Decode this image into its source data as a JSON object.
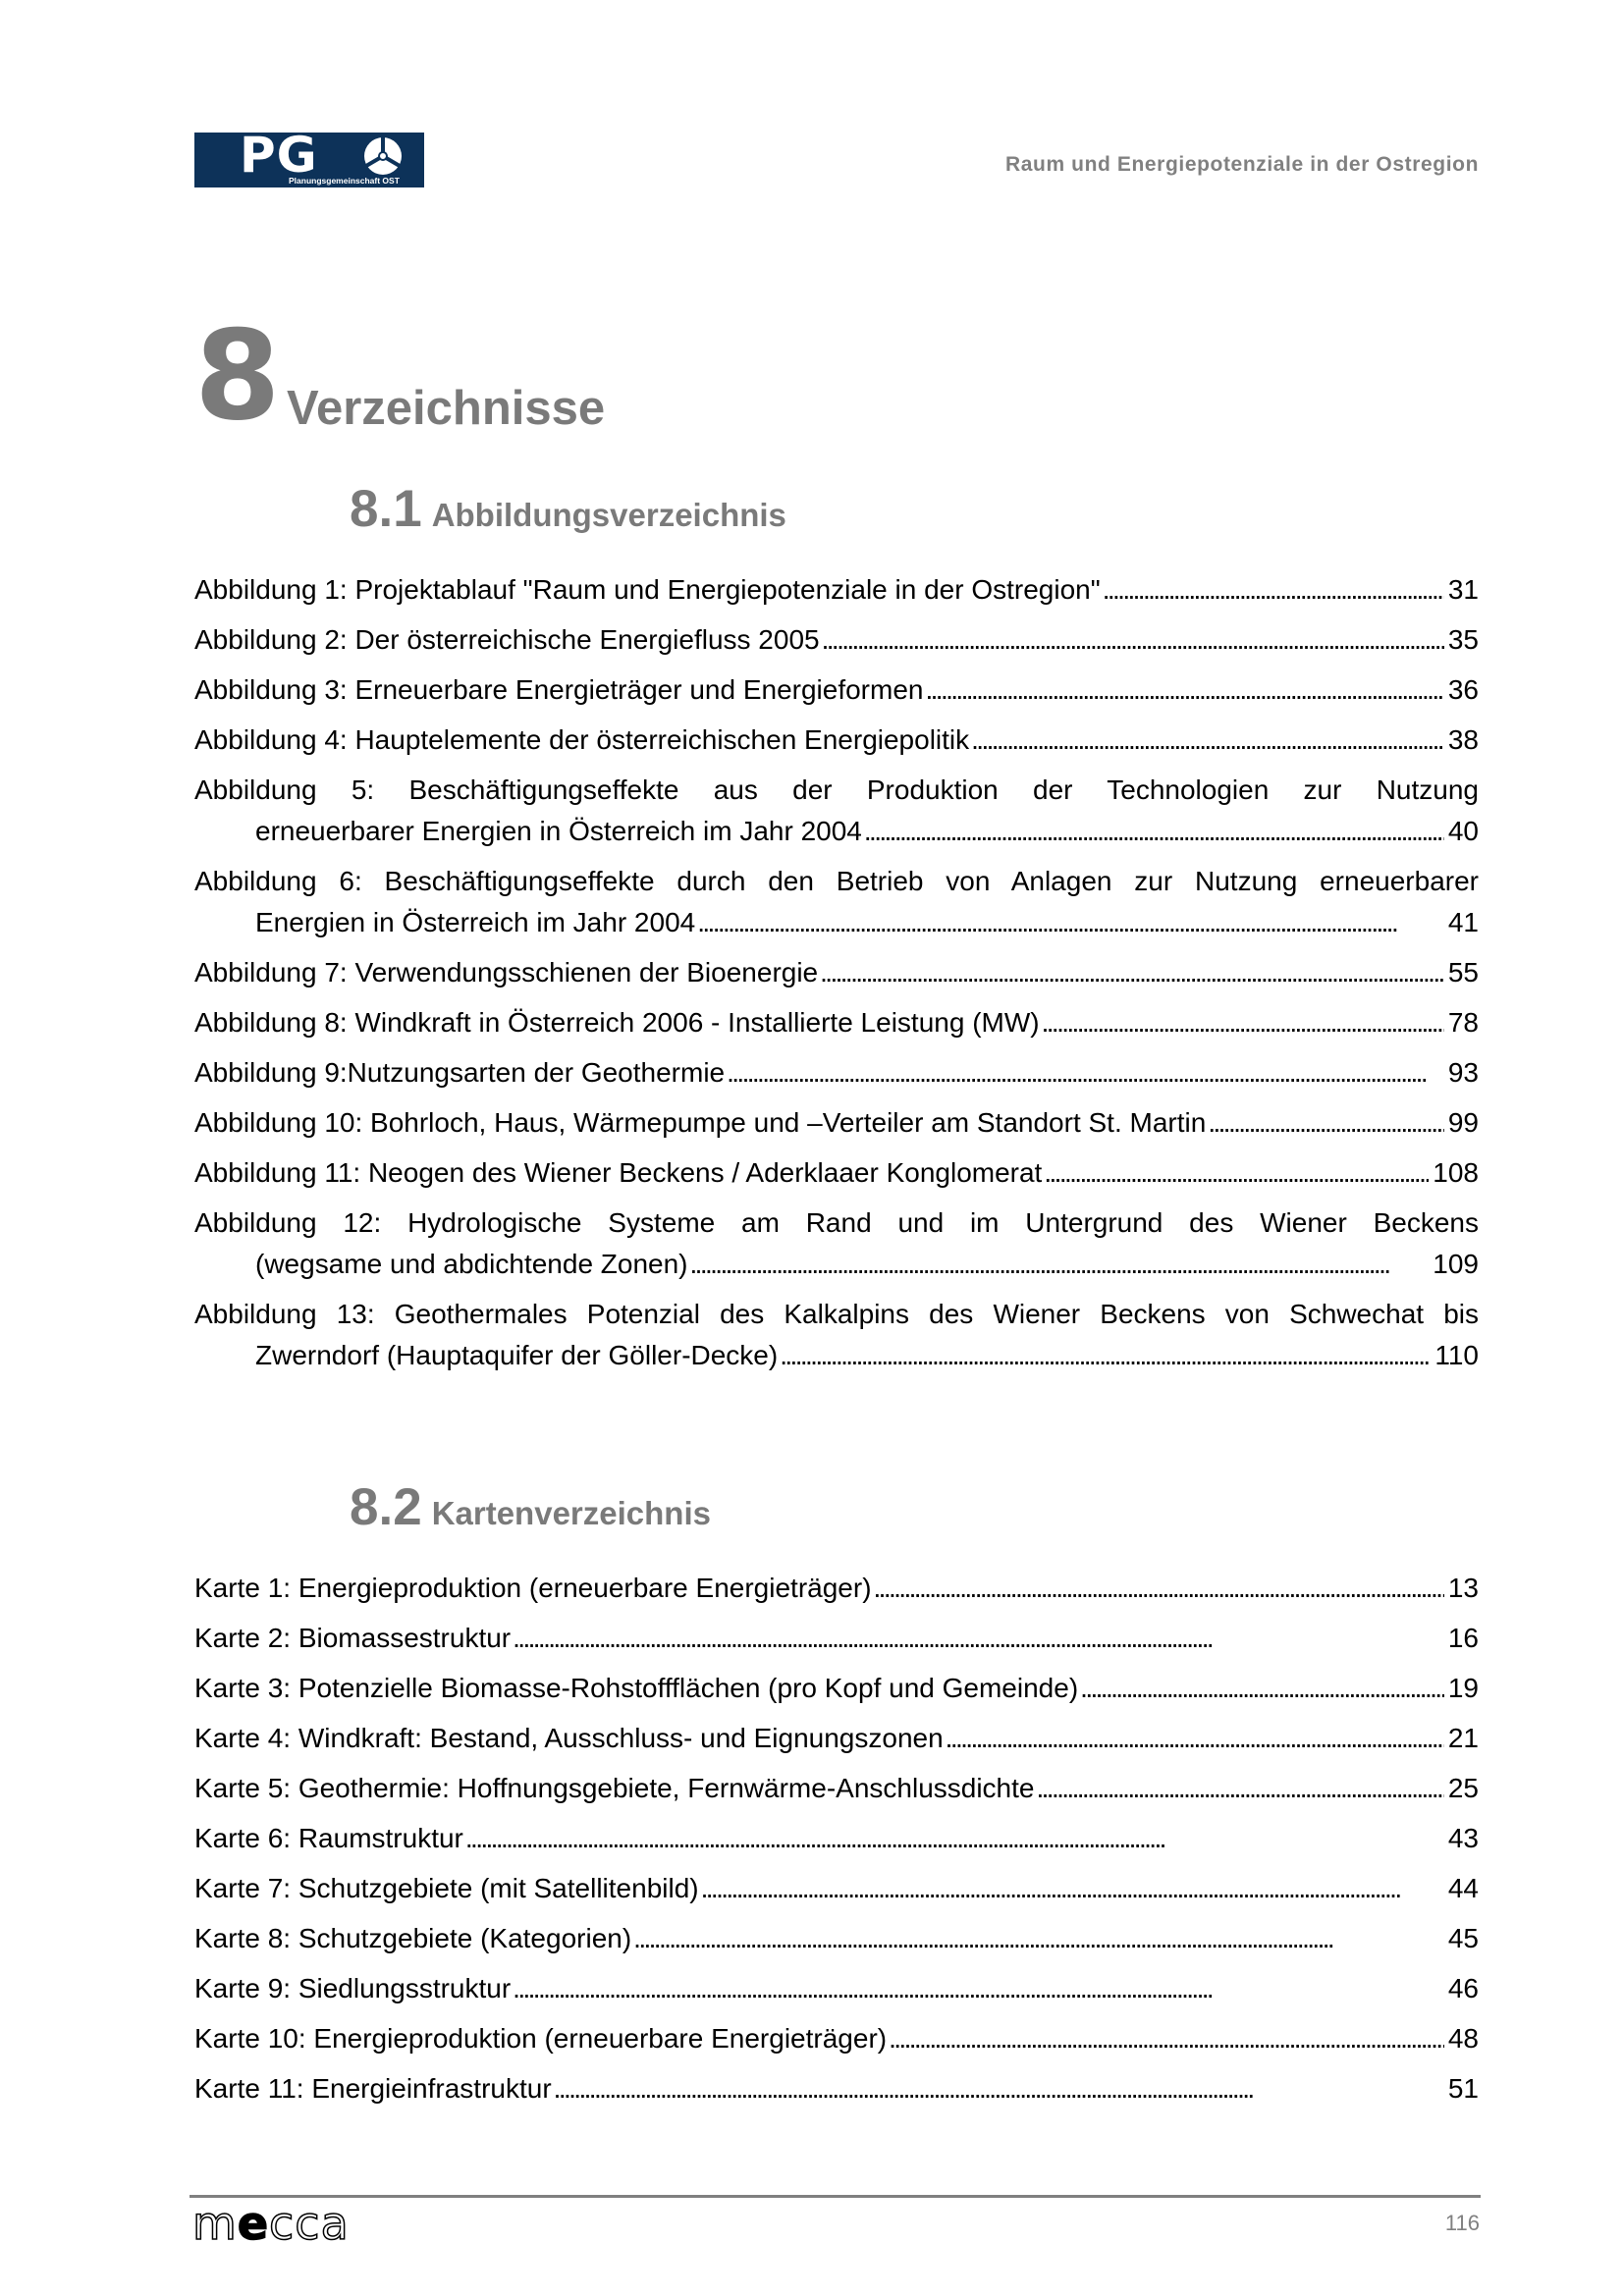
{
  "header": {
    "logo_text": "PG",
    "logo_subtitle": "Planungsgemeinschaft OST",
    "title": "Raum und Energiepotenziale in der Ostregion"
  },
  "chapter": {
    "number": "8",
    "title": "Verzeichnisse"
  },
  "section1": {
    "number": "8.1",
    "title": "Abbildungsverzeichnis",
    "entries": [
      {
        "line1": "Abbildung 1: Projektablauf \"Raum und Energiepotenziale in der Ostregion\"",
        "page": "31"
      },
      {
        "line1": "Abbildung 2: Der österreichische Energiefluss 2005",
        "page": "35"
      },
      {
        "line1": "Abbildung 3: Erneuerbare Energieträger und Energieformen",
        "page": "36"
      },
      {
        "line1": "Abbildung 4: Hauptelemente der österreichischen Energiepolitik",
        "page": "38"
      },
      {
        "line1": "Abbildung 5: Beschäftigungseffekte aus der Produktion der Technologien zur Nutzung",
        "line2": "erneuerbarer Energien in Österreich im Jahr 2004",
        "page": "40"
      },
      {
        "line1": "Abbildung 6: Beschäftigungseffekte durch den Betrieb von Anlagen zur Nutzung erneuerbarer",
        "line2": "Energien in Österreich im Jahr 2004",
        "page": "41"
      },
      {
        "line1": "Abbildung 7: Verwendungsschienen der Bioenergie",
        "page": "55"
      },
      {
        "line1": "Abbildung 8: Windkraft in Österreich 2006 - Installierte Leistung (MW)",
        "page": "78"
      },
      {
        "line1": "Abbildung 9:Nutzungsarten der Geothermie",
        "page": "93"
      },
      {
        "line1": "Abbildung 10: Bohrloch, Haus, Wärmepumpe und –Verteiler am Standort St. Martin",
        "page": "99"
      },
      {
        "line1": "Abbildung 11: Neogen des Wiener Beckens / Aderklaaer Konglomerat",
        "page": "108"
      },
      {
        "line1": "Abbildung 12: Hydrologische Systeme am Rand und im Untergrund des Wiener Beckens",
        "line2": "(wegsame und abdichtende Zonen)",
        "page": "109"
      },
      {
        "line1": "Abbildung 13: Geothermales Potenzial des Kalkalpins des Wiener Beckens von Schwechat bis",
        "line2": "Zwerndorf (Hauptaquifer der Göller-Decke)",
        "page": "110"
      }
    ]
  },
  "section2": {
    "number": "8.2",
    "title": "Kartenverzeichnis",
    "entries": [
      {
        "line1": "Karte 1: Energieproduktion (erneuerbare Energieträger)",
        "page": "13"
      },
      {
        "line1": "Karte 2: Biomassestruktur",
        "page": "16"
      },
      {
        "line1": "Karte 3: Potenzielle Biomasse-Rohstoffflächen (pro Kopf und Gemeinde)",
        "page": "19"
      },
      {
        "line1": "Karte 4: Windkraft: Bestand, Ausschluss- und Eignungszonen",
        "page": "21"
      },
      {
        "line1": "Karte 5: Geothermie: Hoffnungsgebiete, Fernwärme-Anschlussdichte",
        "page": "25"
      },
      {
        "line1": "Karte 6: Raumstruktur",
        "page": "43"
      },
      {
        "line1": "Karte 7: Schutzgebiete (mit Satellitenbild)",
        "page": "44"
      },
      {
        "line1": "Karte 8: Schutzgebiete (Kategorien)",
        "page": "45"
      },
      {
        "line1": "Karte 9: Siedlungsstruktur",
        "page": "46"
      },
      {
        "line1": "Karte 10: Energieproduktion (erneuerbare Energieträger)",
        "page": "48"
      },
      {
        "line1": "Karte 11: Energieinfrastruktur",
        "page": "51"
      }
    ]
  },
  "footer": {
    "logo_text": "mecca",
    "page_number": "116"
  }
}
